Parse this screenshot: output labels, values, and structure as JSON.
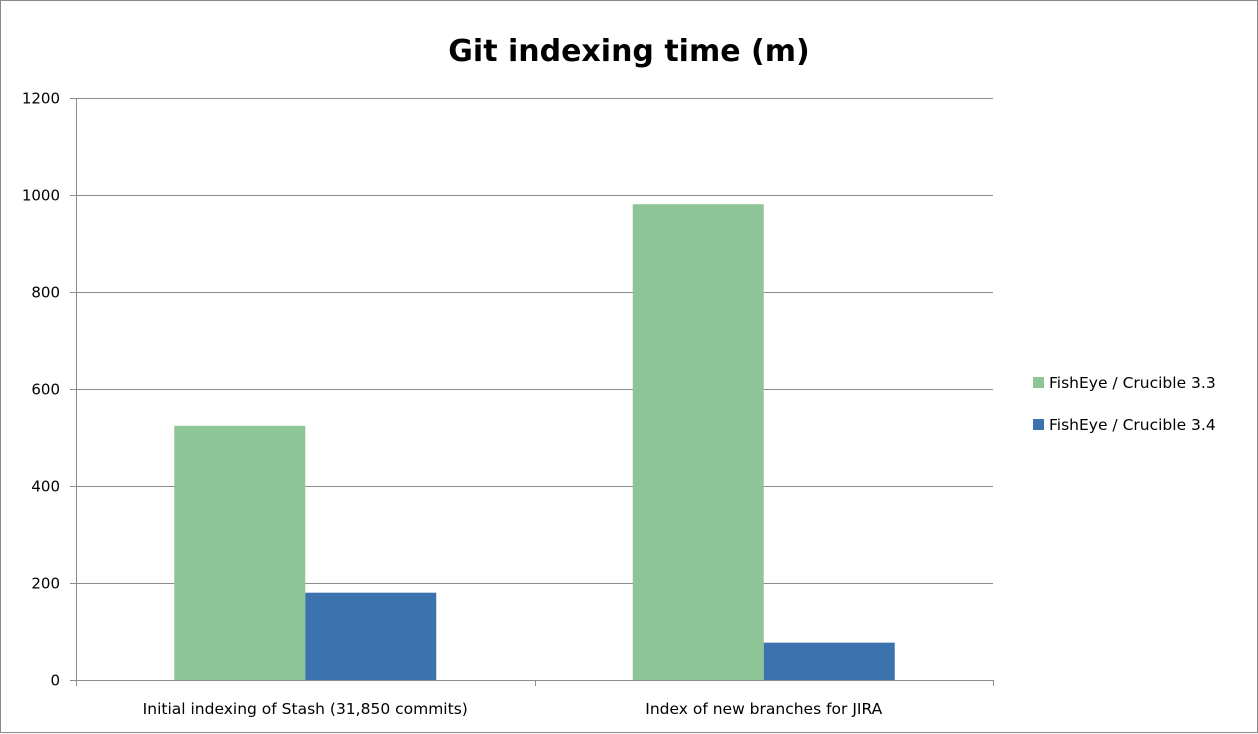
{
  "chart_data": {
    "type": "bar",
    "title": "Git indexing time (m)",
    "xlabel": "",
    "ylabel": "",
    "categories": [
      "Initial indexing of Stash (31,850 commits)",
      "Index of new branches for JIRA"
    ],
    "series": [
      {
        "name": "FishEye / Crucible 3.3",
        "values": [
          524,
          981
        ],
        "color": "#8dc596"
      },
      {
        "name": "FishEye / Crucible 3.4",
        "values": [
          180,
          77
        ],
        "color": "#3c72ae"
      }
    ],
    "ylim": [
      0,
      1200
    ],
    "yticks": [
      0,
      200,
      400,
      600,
      800,
      1000,
      1200
    ],
    "grid": true,
    "legend_position": "right"
  }
}
